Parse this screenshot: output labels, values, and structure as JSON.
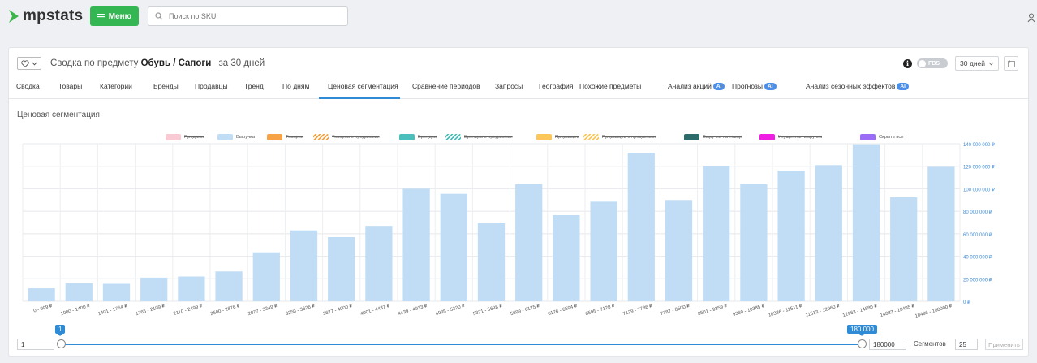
{
  "app": {
    "logo_text": "mpstats",
    "menu_label": "Меню",
    "search_placeholder": "Поиск по SKU"
  },
  "header": {
    "prefix": "Сводка по предмету",
    "subject": "Обувь / Сапоги",
    "period": "за 30 дней",
    "fbs_label": "FBS",
    "period_select": "30 дней"
  },
  "tabs": [
    {
      "label": "Сводка"
    },
    {
      "label": "Товары"
    },
    {
      "label": "Категории"
    },
    {
      "label": "Бренды"
    },
    {
      "label": "Продавцы"
    },
    {
      "label": "Тренд"
    },
    {
      "label": "По дням"
    },
    {
      "label": "Ценовая сегментация",
      "active": true
    },
    {
      "label": "Сравнение периодов"
    },
    {
      "label": "Запросы"
    },
    {
      "label": "География"
    },
    {
      "label": "Похожие предметы"
    },
    {
      "label": "Анализ акций",
      "ai": "AI"
    },
    {
      "label": "Прогнозы",
      "ai": "AI"
    },
    {
      "label": "Анализ сезонных эффектов",
      "ai": "AI"
    }
  ],
  "section_title": "Ценовая сегментация",
  "legend": [
    {
      "label": "Продажи",
      "color": "#f9c9d4",
      "enabled": false,
      "style": "solid"
    },
    {
      "label": "Выручка",
      "color": "#c0ddf5",
      "enabled": true,
      "style": "solid"
    },
    {
      "label": "Товаров",
      "color": "#f7a245",
      "enabled": false,
      "style": "solid"
    },
    {
      "label": "Товаров с продажами",
      "color": "#f7a245",
      "enabled": false,
      "style": "zigzag"
    },
    {
      "label": "Брендов",
      "color": "#4bbfbd",
      "enabled": false,
      "style": "solid"
    },
    {
      "label": "Брендов с продажами",
      "color": "#4bbfbd",
      "enabled": false,
      "style": "zigzag"
    },
    {
      "label": "Продавцов",
      "color": "#fcc65a",
      "enabled": false,
      "style": "solid"
    },
    {
      "label": "Продавцов с продажами",
      "color": "#fcc65a",
      "enabled": false,
      "style": "zigzag"
    },
    {
      "label": "Выручка на товар",
      "color": "#2d6a6a",
      "enabled": false,
      "style": "solid"
    },
    {
      "label": "Упущенная выручка",
      "color": "#f01ee3",
      "enabled": false,
      "style": "solid"
    },
    {
      "label": "Скрыть все",
      "color": "#9b6cf5",
      "enabled": true,
      "style": "solid"
    }
  ],
  "chart_data": {
    "type": "bar",
    "categories": [
      "0 - 999 ₽",
      "1000 - 1400 ₽",
      "1401 - 1764 ₽",
      "1765 - 2109 ₽",
      "2110 - 2499 ₽",
      "2500 - 2876 ₽",
      "2877 - 3249 ₽",
      "3250 - 3626 ₽",
      "3627 - 4000 ₽",
      "4001 - 4437 ₽",
      "4439 - 4933 ₽",
      "4935 - 5320 ₽",
      "5321 - 5698 ₽",
      "5699 - 6125 ₽",
      "6126 - 6594 ₽",
      "6595 - 7128 ₽",
      "7129 - 7786 ₽",
      "7787 - 8500 ₽",
      "8501 - 9359 ₽",
      "9360 - 10385 ₽",
      "10386 - 11511 ₽",
      "11513 - 12960 ₽",
      "12963 - 14880 ₽",
      "14883 - 18495 ₽",
      "18496 - 180000 ₽"
    ],
    "series": [
      {
        "name": "Выручка",
        "color": "#c0ddf5",
        "values": [
          11500000,
          16000000,
          15500000,
          21000000,
          22000000,
          26500000,
          43500000,
          63000000,
          57000000,
          67000000,
          100000000,
          95500000,
          70000000,
          104000000,
          76500000,
          88500000,
          132000000,
          90000000,
          120500000,
          104000000,
          116000000,
          121000000,
          139500000,
          92500000,
          119500000
        ]
      }
    ],
    "ylim": [
      0,
      140000000
    ],
    "yticks": [
      0,
      20000000,
      40000000,
      60000000,
      80000000,
      100000000,
      120000000,
      140000000
    ],
    "ytick_labels": [
      "0 ₽",
      "20 000 000 ₽",
      "40 000 000 ₽",
      "60 000 000 ₽",
      "80 000 000 ₽",
      "100 000 000 ₽",
      "120 000 000 ₽",
      "140 000 000 ₽"
    ],
    "yaxis_position": "right",
    "grid": true
  },
  "slider": {
    "min_value": "1",
    "max_value": "180000",
    "min_tip": "1",
    "max_tip": "180 000",
    "segments_label": "Сегментов",
    "segments_value": "25",
    "apply_label": "Применить"
  }
}
